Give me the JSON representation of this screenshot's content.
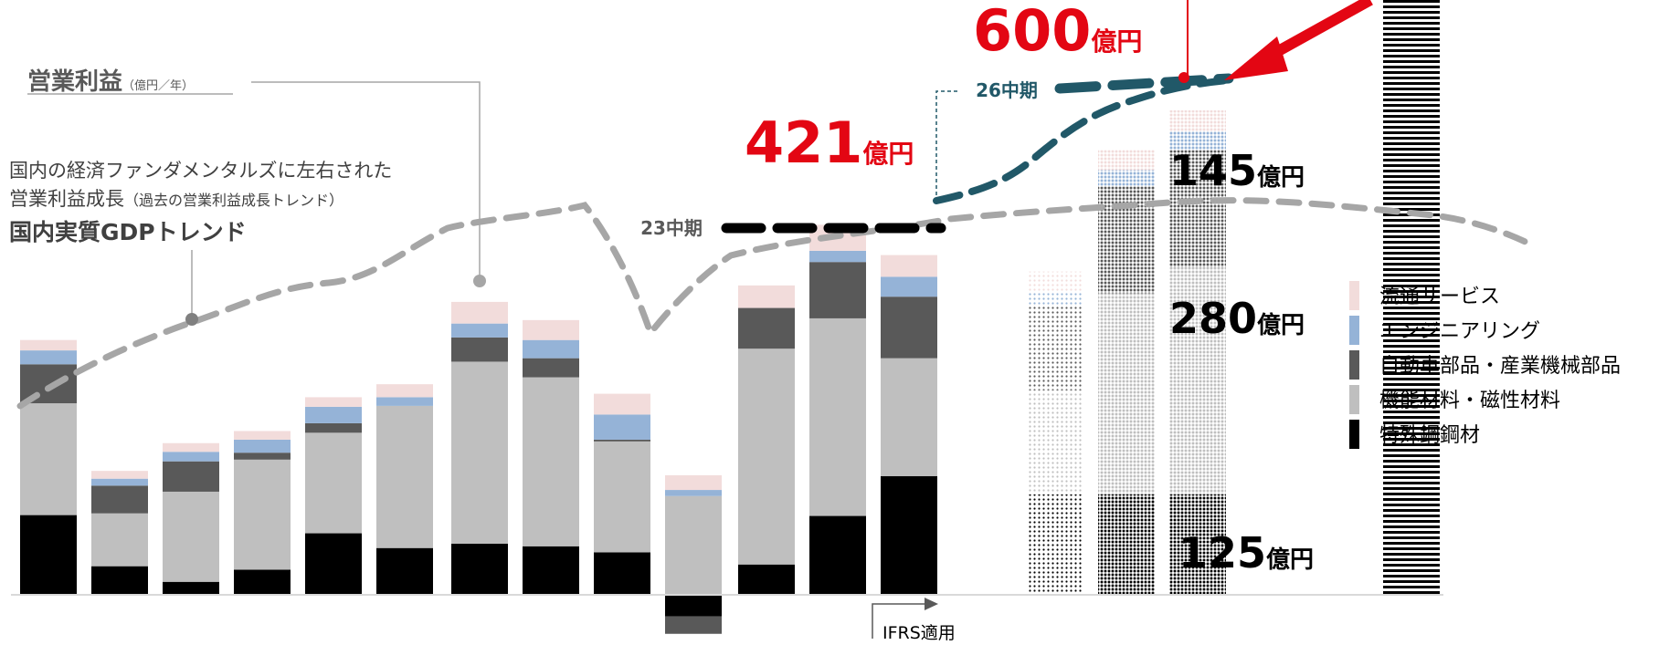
{
  "chart_data": {
    "type": "bar",
    "stacked": true,
    "categories": [
      "",
      "",
      "",
      "",
      "",
      "",
      "",
      "",
      "",
      "",
      "",
      "",
      "",
      "",
      "",
      "",
      ""
    ],
    "series": [
      {
        "name": "特殊鋼鋼材",
        "color": "#000000",
        "values": [
          92,
          33,
          15,
          29,
          71,
          54,
          59,
          56,
          49,
          -25,
          35,
          91,
          137,
          116,
          116,
          116,
          0
        ]
      },
      {
        "name": "機能材料・磁性材料",
        "color": "#bfbfbf",
        "values": [
          129,
          61,
          104,
          127,
          116,
          164,
          210,
          195,
          128,
          114,
          249,
          228,
          136,
          120,
          232,
          262,
          0
        ]
      },
      {
        "name": "自動車部品・産業機械部品",
        "color": "#595959",
        "values": [
          45,
          32,
          35,
          8,
          11,
          0,
          28,
          22,
          2,
          -20,
          47,
          65,
          71,
          98,
          123,
          135,
          0
        ]
      },
      {
        "name": "エンジニアリング",
        "color": "#95b3d7",
        "values": [
          16,
          8,
          11,
          15,
          19,
          10,
          16,
          21,
          29,
          7,
          0,
          13,
          23,
          14,
          19,
          22,
          0
        ]
      },
      {
        "name": "流通サービス",
        "color": "#f2dcdb",
        "values": [
          12,
          9,
          10,
          10,
          11,
          15,
          25,
          23,
          24,
          17,
          26,
          30,
          25,
          25,
          23,
          24,
          0
        ]
      }
    ],
    "bar_styles": [
      "solid",
      "solid",
      "solid",
      "solid",
      "solid",
      "solid",
      "solid",
      "solid",
      "solid",
      "solid",
      "solid",
      "solid",
      "solid",
      "dotted-light",
      "dotted",
      "dotted",
      "lined"
    ],
    "title": "",
    "gdp_trend_label": "国内実質GDPトレンド",
    "legend_position": "right"
  },
  "annotations": {
    "op_profit_label": "営業利益",
    "op_profit_unit": "（億円／年）",
    "desc_line1": "国内の経済ファンダメンタルズに左右された",
    "desc_line2_main": "営業利益成長",
    "desc_line2_sub": "（過去の営業利益成長トレンド）",
    "gdp_trend": "国内実質GDPトレンド",
    "plan23": "23中期",
    "plan26": "26中期",
    "v421": "421",
    "v600": "600",
    "unit_oku": "億円",
    "v145": "145",
    "v280": "280",
    "v125": "125",
    "ifrs": "IFRS適用"
  }
}
